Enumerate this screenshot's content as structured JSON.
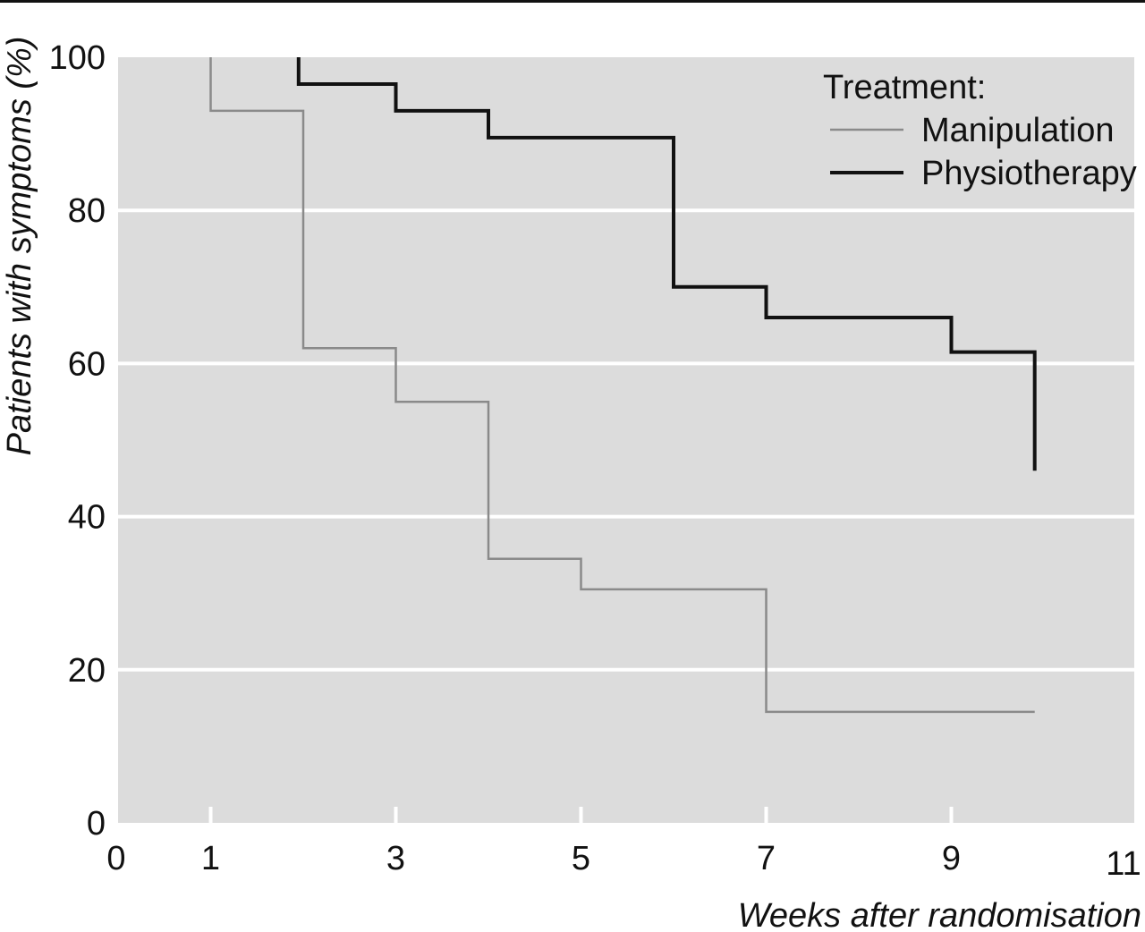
{
  "chart_data": {
    "type": "line",
    "step": true,
    "title": "",
    "xlabel": "Weeks after randomisation",
    "ylabel": "Patients with symptoms (%)",
    "xlim": [
      0,
      11
    ],
    "ylim": [
      0,
      100
    ],
    "x_ticks": [
      0,
      1,
      3,
      5,
      7,
      9,
      11
    ],
    "y_ticks": [
      0,
      20,
      40,
      60,
      80,
      100
    ],
    "grid": "horizontal",
    "background": "#dcdcdc",
    "legend": {
      "title": "Treatment:",
      "position": "top-right"
    },
    "series": [
      {
        "name": "Manipulation",
        "color": "#8a8a8a",
        "line_weight": "thin",
        "points": [
          [
            1,
            100
          ],
          [
            1,
            93
          ],
          [
            2,
            93
          ],
          [
            2,
            62
          ],
          [
            3,
            62
          ],
          [
            3,
            55
          ],
          [
            4,
            55
          ],
          [
            4,
            34.5
          ],
          [
            5,
            34.5
          ],
          [
            5,
            30.5
          ],
          [
            7,
            30.5
          ],
          [
            7,
            14.5
          ],
          [
            9.9,
            14.5
          ]
        ]
      },
      {
        "name": "Physiotherapy",
        "color": "#111111",
        "line_weight": "thick",
        "points": [
          [
            1.95,
            100
          ],
          [
            1.95,
            96.5
          ],
          [
            3,
            96.5
          ],
          [
            3,
            93
          ],
          [
            4,
            93
          ],
          [
            4,
            89.5
          ],
          [
            6,
            89.5
          ],
          [
            6,
            70
          ],
          [
            7,
            70
          ],
          [
            7,
            66
          ],
          [
            9,
            66
          ],
          [
            9,
            61.5
          ],
          [
            9.9,
            61.5
          ],
          [
            9.9,
            46
          ]
        ]
      }
    ]
  }
}
